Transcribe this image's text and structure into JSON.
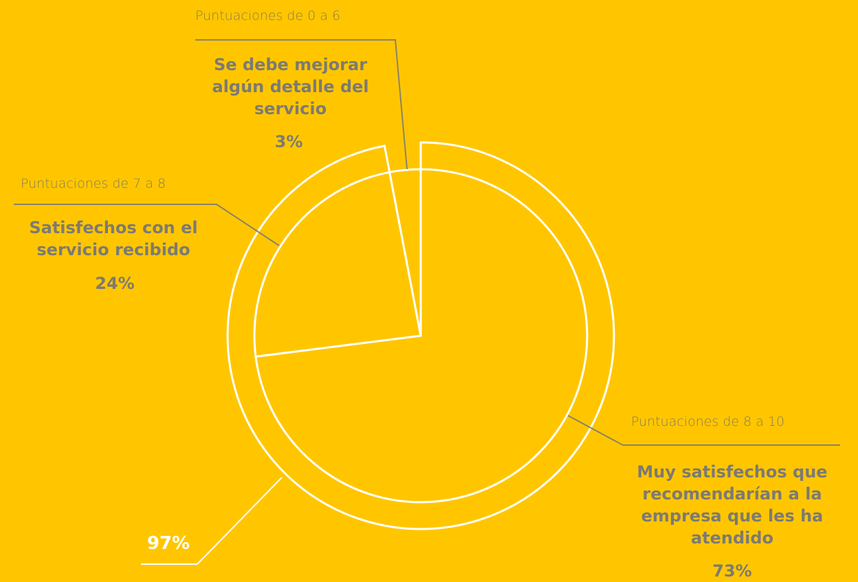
{
  "chart_data": {
    "type": "pie",
    "slices": [
      {
        "range_label": "Puntuaciones de 8 a 10",
        "label": "Muy satisfechos que recomendarían a la empresa que les ha atendido",
        "value": 73,
        "value_label": "73%"
      },
      {
        "range_label": "Puntuaciones de 7 a 8",
        "label": "Satisfechos con el servicio recibido",
        "value": 24,
        "value_label": "24%"
      },
      {
        "range_label": "Puntuaciones de 0 a 6",
        "label": "Se debe mejorar algún detalle del servicio",
        "value": 3,
        "value_label": "3%"
      }
    ],
    "outer_ring": {
      "value": 97,
      "value_label": "97%"
    }
  },
  "colors": {
    "background": "#FFC600",
    "stroke": "#FFFFFF",
    "text": "#7D7A72",
    "leader": "#8C8266"
  }
}
